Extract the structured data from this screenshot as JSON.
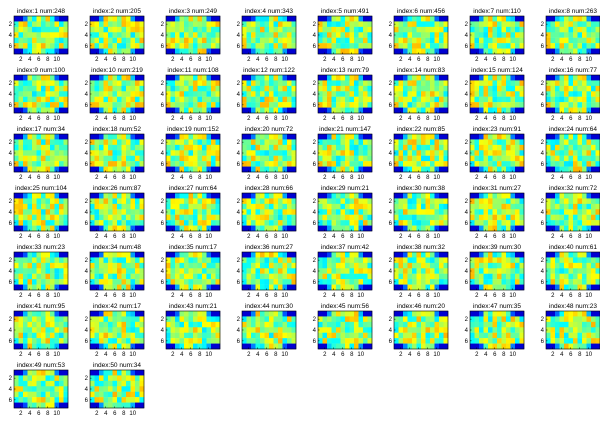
{
  "chart_data": {
    "type": "heatmap",
    "colormap": "jet",
    "grid": false,
    "rows": 7,
    "cols": 12,
    "xlim": [
      0.5,
      12.5
    ],
    "ylim": [
      0.5,
      7.5
    ],
    "xticks": [
      2,
      4,
      6,
      8,
      10
    ],
    "yticks": [
      2,
      4,
      6
    ],
    "panels": [
      {
        "title": "index:1 num:248",
        "index": 1,
        "num": 248
      },
      {
        "title": "index:2 num:205",
        "index": 2,
        "num": 205
      },
      {
        "title": "index:3 num:249",
        "index": 3,
        "num": 249
      },
      {
        "title": "index:4 num:343",
        "index": 4,
        "num": 343
      },
      {
        "title": "index:5 num:491",
        "index": 5,
        "num": 491
      },
      {
        "title": "index:6 num:456",
        "index": 6,
        "num": 456
      },
      {
        "title": "index:7 num:110",
        "index": 7,
        "num": 110
      },
      {
        "title": "index:8 num:263",
        "index": 8,
        "num": 263
      },
      {
        "title": "index:9 num:100",
        "index": 9,
        "num": 100
      },
      {
        "title": "index:10 num:219",
        "index": 10,
        "num": 219
      },
      {
        "title": "index:11 num:108",
        "index": 11,
        "num": 108
      },
      {
        "title": "index:12 num:122",
        "index": 12,
        "num": 122
      },
      {
        "title": "index:13 num:79",
        "index": 13,
        "num": 79
      },
      {
        "title": "index:14 num:83",
        "index": 14,
        "num": 83
      },
      {
        "title": "index:15 num:124",
        "index": 15,
        "num": 124
      },
      {
        "title": "index:16 num:77",
        "index": 16,
        "num": 77
      },
      {
        "title": "index:17 num:34",
        "index": 17,
        "num": 34
      },
      {
        "title": "index:18 num:52",
        "index": 18,
        "num": 52
      },
      {
        "title": "index:19 num:152",
        "index": 19,
        "num": 152
      },
      {
        "title": "index:20 num:72",
        "index": 20,
        "num": 72
      },
      {
        "title": "index:21 num:147",
        "index": 21,
        "num": 147
      },
      {
        "title": "index:22 num:85",
        "index": 22,
        "num": 85
      },
      {
        "title": "index:23 num:91",
        "index": 23,
        "num": 91
      },
      {
        "title": "index:24 num:64",
        "index": 24,
        "num": 64
      },
      {
        "title": "index:25 num:104",
        "index": 25,
        "num": 104
      },
      {
        "title": "index:26 num:87",
        "index": 26,
        "num": 87
      },
      {
        "title": "index:27 num:64",
        "index": 27,
        "num": 64
      },
      {
        "title": "index:28 num:66",
        "index": 28,
        "num": 66
      },
      {
        "title": "index:29 num:21",
        "index": 29,
        "num": 21
      },
      {
        "title": "index:30 num:38",
        "index": 30,
        "num": 38
      },
      {
        "title": "index:31 num:27",
        "index": 31,
        "num": 27
      },
      {
        "title": "index:32 num:72",
        "index": 32,
        "num": 72
      },
      {
        "title": "index:33 num:23",
        "index": 33,
        "num": 23
      },
      {
        "title": "index:34 num:48",
        "index": 34,
        "num": 48
      },
      {
        "title": "index:35 num:17",
        "index": 35,
        "num": 17
      },
      {
        "title": "index:36 num:27",
        "index": 36,
        "num": 27
      },
      {
        "title": "index:37 num:42",
        "index": 37,
        "num": 42
      },
      {
        "title": "index:38 num:32",
        "index": 38,
        "num": 32
      },
      {
        "title": "index:39 num:30",
        "index": 39,
        "num": 30
      },
      {
        "title": "index:40 num:61",
        "index": 40,
        "num": 61
      },
      {
        "title": "index:41 num:95",
        "index": 41,
        "num": 95
      },
      {
        "title": "index:42 num:17",
        "index": 42,
        "num": 17
      },
      {
        "title": "index:43 num:21",
        "index": 43,
        "num": 21
      },
      {
        "title": "index:44 num:30",
        "index": 44,
        "num": 30
      },
      {
        "title": "index:45 num:56",
        "index": 45,
        "num": 56
      },
      {
        "title": "index:46 num:20",
        "index": 46,
        "num": 20
      },
      {
        "title": "index:47 num:35",
        "index": 47,
        "num": 35
      },
      {
        "title": "index:48 num:23",
        "index": 48,
        "num": 23
      },
      {
        "title": "index:49 num:53",
        "index": 49,
        "num": 53
      },
      {
        "title": "index:50 num:34",
        "index": 50,
        "num": 34
      }
    ]
  }
}
